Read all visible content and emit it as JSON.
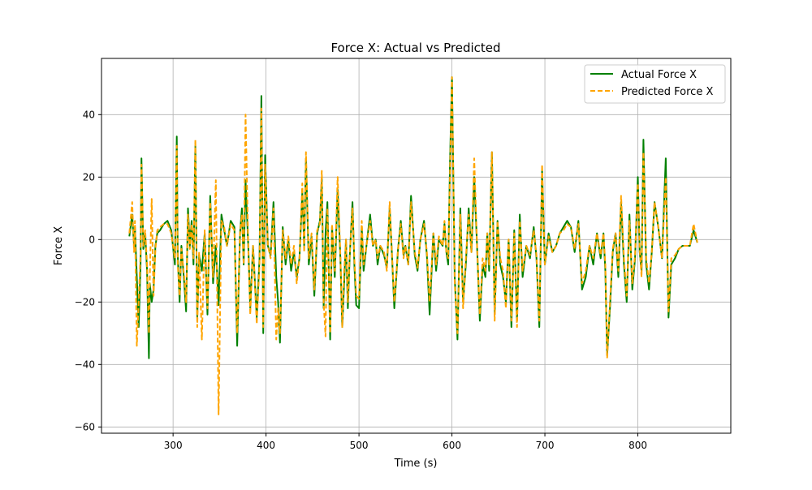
{
  "chart_data": {
    "type": "line",
    "title": "Force X: Actual vs Predicted",
    "xlabel": "Time (s)",
    "ylabel": "Force X",
    "xlim": [
      223,
      900
    ],
    "ylim": [
      -62,
      58
    ],
    "xticks": [
      300,
      400,
      500,
      600,
      700,
      800
    ],
    "yticks": [
      -60,
      -40,
      -20,
      0,
      20,
      40
    ],
    "grid": true,
    "legend_position": "top-right",
    "series": [
      {
        "name": "Actual Force X",
        "color": "#008000",
        "style": "solid",
        "x": [
          253,
          256,
          258,
          259,
          261,
          263,
          265,
          266,
          268,
          270,
          272,
          274,
          275,
          277,
          279,
          281,
          283,
          286,
          290,
          294,
          298,
          302,
          304,
          305,
          307,
          309,
          312,
          314,
          316,
          318,
          320,
          322,
          324,
          326,
          328,
          331,
          334,
          337,
          340,
          343,
          346,
          349,
          352,
          355,
          358,
          362,
          366,
          369,
          372,
          374,
          376,
          378,
          381,
          383,
          386,
          390,
          393,
          395,
          397,
          399,
          402,
          405,
          408,
          411,
          413,
          415,
          418,
          421,
          424,
          427,
          430,
          433,
          436,
          439,
          441,
          443,
          446,
          449,
          452,
          455,
          458,
          460,
          462,
          464,
          466,
          469,
          471,
          474,
          477,
          480,
          482,
          484,
          486,
          488,
          490,
          493,
          495,
          497,
          500,
          503,
          505,
          508,
          512,
          515,
          518,
          520,
          523,
          527,
          530,
          533,
          535,
          538,
          542,
          545,
          548,
          550,
          553,
          556,
          560,
          563,
          566,
          570,
          573,
          576,
          580,
          583,
          586,
          590,
          592,
          594,
          596,
          598,
          600,
          603,
          606,
          609,
          612,
          615,
          618,
          621,
          624,
          627,
          630,
          633,
          636,
          638,
          640,
          643,
          646,
          649,
          652,
          655,
          658,
          661,
          664,
          667,
          670,
          673,
          676,
          680,
          684,
          688,
          691,
          694,
          697,
          700,
          704,
          708,
          712,
          716,
          720,
          724,
          728,
          732,
          736,
          740,
          744,
          748,
          752,
          756,
          760,
          763,
          765,
          767,
          770,
          773,
          776,
          779,
          782,
          785,
          788,
          791,
          794,
          797,
          800,
          802,
          804,
          806,
          809,
          812,
          815,
          818,
          822,
          826,
          830,
          833,
          836,
          840,
          844,
          848,
          852,
          856,
          860,
          864
        ],
        "y": [
          1,
          8,
          -2,
          4,
          -12,
          -28,
          -8,
          26,
          -3,
          2,
          -10,
          -38,
          -14,
          -20,
          -16,
          -2,
          2,
          3,
          5,
          6,
          3,
          -8,
          33,
          -5,
          -20,
          -2,
          -14,
          -23,
          10,
          -2,
          6,
          -8,
          30,
          -25,
          -5,
          -10,
          2,
          -24,
          14,
          -14,
          -2,
          -21,
          8,
          3,
          -2,
          6,
          4,
          -34,
          2,
          10,
          -8,
          19,
          -3,
          -22,
          -2,
          -25,
          -6,
          46,
          -30,
          27,
          -2,
          -5,
          12,
          -12,
          -20,
          -33,
          4,
          -8,
          0,
          -10,
          -4,
          -12,
          -6,
          15,
          -2,
          26,
          -8,
          1,
          -18,
          2,
          6,
          20,
          -22,
          2,
          12,
          -32,
          4,
          -12,
          16,
          -6,
          -28,
          -14,
          0,
          -22,
          -6,
          12,
          -8,
          -21,
          -22,
          4,
          -10,
          -2,
          8,
          -2,
          0,
          -8,
          -2,
          -5,
          -9,
          10,
          -2,
          -22,
          -3,
          6,
          -5,
          -2,
          -8,
          14,
          -5,
          -10,
          0,
          6,
          -5,
          -24,
          2,
          -10,
          0,
          -2,
          5,
          -4,
          -8,
          26,
          52,
          -12,
          -32,
          10,
          -20,
          -8,
          10,
          -4,
          20,
          -2,
          -26,
          -8,
          -12,
          2,
          -10,
          28,
          -24,
          6,
          -8,
          -12,
          -20,
          0,
          -28,
          3,
          -26,
          8,
          -12,
          -2,
          -6,
          4,
          -6,
          -28,
          22,
          -8,
          2,
          -4,
          -2,
          2,
          4,
          6,
          4,
          -4,
          6,
          -16,
          -12,
          -2,
          -8,
          2,
          -6,
          2,
          -10,
          -37,
          -22,
          -4,
          2,
          -12,
          12,
          -8,
          -20,
          8,
          -16,
          -6,
          20,
          -4,
          -10,
          32,
          -8,
          -16,
          -4,
          12,
          4,
          -6,
          26,
          -25,
          -8,
          -6,
          -3,
          -2,
          -2,
          -2,
          3,
          -1
        ]
      },
      {
        "name": "Predicted Force X",
        "color": "#ffa500",
        "style": "dashed",
        "x": [
          253,
          256,
          258,
          259,
          261,
          263,
          265,
          266,
          268,
          270,
          272,
          274,
          275,
          277,
          279,
          281,
          283,
          286,
          290,
          294,
          298,
          302,
          304,
          305,
          307,
          309,
          312,
          314,
          316,
          318,
          320,
          322,
          324,
          326,
          328,
          331,
          334,
          337,
          340,
          343,
          346,
          349,
          352,
          355,
          358,
          362,
          366,
          369,
          372,
          374,
          376,
          378,
          381,
          383,
          386,
          390,
          393,
          395,
          397,
          399,
          402,
          405,
          408,
          411,
          413,
          415,
          418,
          421,
          424,
          427,
          430,
          433,
          436,
          439,
          441,
          443,
          446,
          449,
          452,
          455,
          458,
          460,
          462,
          464,
          466,
          469,
          471,
          474,
          477,
          480,
          482,
          484,
          486,
          488,
          490,
          493,
          495,
          497,
          500,
          503,
          505,
          508,
          512,
          515,
          518,
          520,
          523,
          527,
          530,
          533,
          535,
          538,
          542,
          545,
          548,
          550,
          553,
          556,
          560,
          563,
          566,
          570,
          573,
          576,
          580,
          583,
          586,
          590,
          592,
          594,
          596,
          598,
          600,
          603,
          606,
          609,
          612,
          615,
          618,
          621,
          624,
          627,
          630,
          633,
          636,
          638,
          640,
          643,
          646,
          649,
          652,
          655,
          658,
          661,
          664,
          667,
          670,
          673,
          676,
          680,
          684,
          688,
          691,
          694,
          697,
          700,
          704,
          708,
          712,
          716,
          720,
          724,
          728,
          732,
          736,
          740,
          744,
          748,
          752,
          756,
          760,
          763,
          765,
          767,
          770,
          773,
          776,
          779,
          782,
          785,
          788,
          791,
          794,
          797,
          800,
          802,
          804,
          806,
          809,
          812,
          815,
          818,
          822,
          826,
          830,
          833,
          836,
          840,
          844,
          848,
          852,
          856,
          860,
          864
        ],
        "y": [
          2,
          12,
          -4,
          6,
          -34,
          -20,
          -4,
          24,
          -2,
          3,
          -8,
          -30,
          -12,
          13,
          -18,
          -3,
          3,
          4,
          5,
          5,
          2,
          -6,
          30,
          -8,
          -18,
          -3,
          -12,
          -20,
          8,
          -3,
          5,
          -6,
          32,
          -28,
          -4,
          -32,
          3,
          -22,
          12,
          -12,
          19,
          -56,
          6,
          4,
          -2,
          5,
          3,
          -30,
          2,
          8,
          -8,
          40,
          -4,
          -24,
          -2,
          -27,
          -8,
          42,
          -28,
          24,
          -2,
          -6,
          10,
          -32,
          -22,
          -30,
          3,
          -6,
          1,
          -8,
          -2,
          -14,
          -6,
          18,
          -4,
          28,
          -6,
          2,
          -16,
          3,
          5,
          22,
          -20,
          -31,
          10,
          -30,
          5,
          -10,
          20,
          -5,
          -28,
          -10,
          0,
          -20,
          -5,
          10,
          -6,
          -18,
          -19,
          6,
          -8,
          -2,
          6,
          -2,
          0,
          -6,
          -2,
          -4,
          -10,
          12,
          -2,
          -20,
          -3,
          5,
          -6,
          -2,
          -8,
          12,
          -4,
          -9,
          0,
          5,
          -4,
          -20,
          2,
          -8,
          1,
          -2,
          6,
          -4,
          -6,
          22,
          52,
          -14,
          -30,
          8,
          -22,
          -6,
          8,
          -4,
          26,
          -2,
          -24,
          -6,
          -10,
          2,
          -8,
          28,
          -26,
          6,
          -6,
          -10,
          -22,
          0,
          -26,
          2,
          -28,
          6,
          -10,
          -2,
          -5,
          3,
          -5,
          -26,
          24,
          -8,
          1,
          -4,
          -2,
          2,
          3,
          5,
          4,
          -3,
          5,
          -14,
          -10,
          -2,
          -6,
          2,
          -5,
          2,
          -8,
          -38,
          -20,
          -3,
          2,
          -10,
          14,
          -6,
          -18,
          6,
          -14,
          -5,
          18,
          -3,
          -12,
          28,
          -6,
          -14,
          -4,
          12,
          4,
          -6,
          20,
          -23,
          -6,
          -5,
          -3,
          -2,
          -2,
          -2,
          5,
          -1
        ]
      }
    ]
  }
}
